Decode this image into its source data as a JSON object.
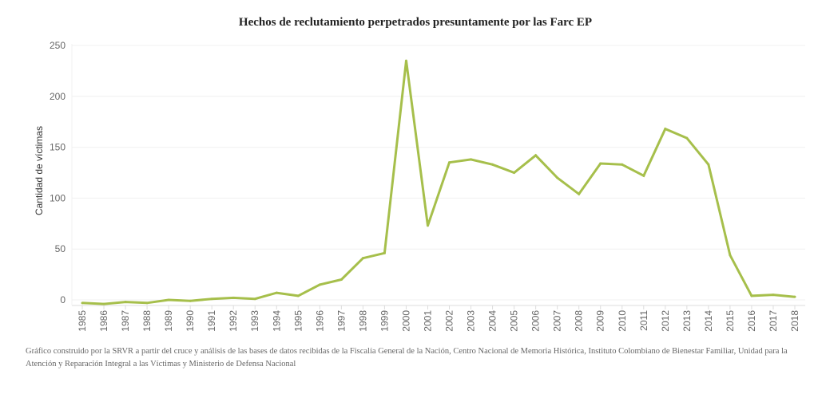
{
  "chart_data": {
    "type": "line",
    "title": "Hechos de reclutamiento perpetrados presuntamente por las Farc EP",
    "xlabel": "",
    "ylabel": "Cantidad de víctimas",
    "ylim": [
      0,
      250
    ],
    "yticks": [
      0,
      50,
      100,
      150,
      200,
      250
    ],
    "grid": true,
    "color": "#a6bf4b",
    "series": [
      {
        "x": [
          "1985",
          "1986",
          "1987",
          "1988",
          "1989",
          "1990",
          "1991",
          "1992",
          "1993",
          "1994",
          "1995",
          "1996",
          "1997",
          "1998",
          "1999",
          "2000",
          "2001",
          "2002",
          "2003",
          "2004",
          "2005",
          "2006",
          "2007",
          "2008",
          "2009",
          "2010",
          "2011",
          "2012",
          "2013",
          "2014",
          "2015",
          "2016",
          "2017",
          "2018"
        ],
        "values": [
          -3,
          -4,
          -2,
          -3,
          0,
          -1,
          1,
          2,
          1,
          7,
          4,
          15,
          20,
          41,
          46,
          235,
          73,
          135,
          138,
          133,
          125,
          142,
          120,
          104,
          134,
          133,
          122,
          168,
          159,
          133,
          44,
          4,
          5,
          3
        ]
      }
    ],
    "note": "Gráfico construido por la SRVR a partir del cruce y análisis de las bases de datos recibidas de la Fiscalía General de la Nación, Centro Nacional de Memoria Histórica, Instituto Colombiano de Bienestar Familiar, Unidad para la Atención y Reparación Integral a las Víctimas y Ministerio de Defensa Nacional"
  }
}
